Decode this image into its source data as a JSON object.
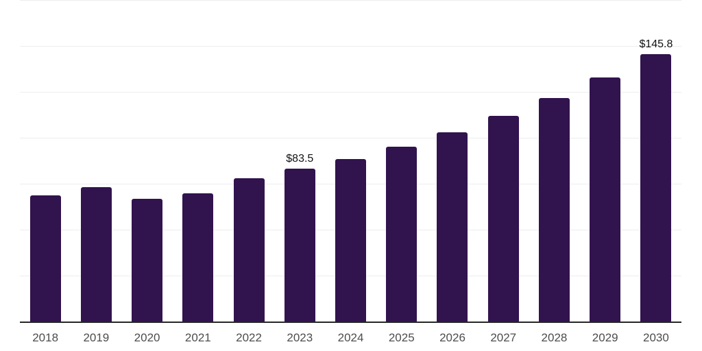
{
  "chart_data": {
    "type": "bar",
    "title": "",
    "xlabel": "",
    "ylabel": "",
    "categories": [
      "2018",
      "2019",
      "2020",
      "2021",
      "2022",
      "2023",
      "2024",
      "2025",
      "2026",
      "2027",
      "2028",
      "2029",
      "2030"
    ],
    "values": [
      69.2,
      73.4,
      67.2,
      70.1,
      78.2,
      83.5,
      88.9,
      95.6,
      103.3,
      112.2,
      122.0,
      133.2,
      145.8
    ],
    "data_labels": [
      "",
      "",
      "",
      "",
      "",
      "$83.5",
      "",
      "",
      "",
      "",
      "",
      "",
      "$145.8"
    ],
    "currency_prefix": "$",
    "ylim": [
      0,
      175
    ],
    "ytick_step": 25,
    "y_axis_labels_visible": false,
    "grid": true,
    "legend": "none",
    "colors": {
      "bar": "#31134e",
      "gridline": "#ededed",
      "axis_line": "#262626",
      "tick_label": "#4d4d4d",
      "data_label": "#111111",
      "background": "#ffffff"
    }
  }
}
